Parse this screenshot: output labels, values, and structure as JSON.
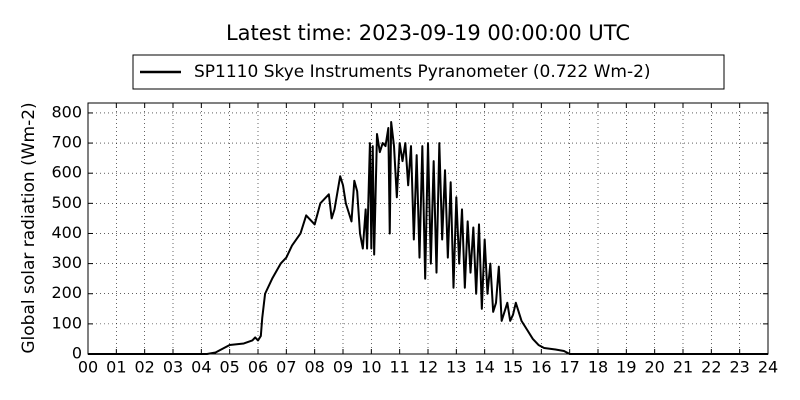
{
  "chart_data": {
    "type": "line",
    "title": "Latest time: 2023-09-19 00:00:00 UTC",
    "y_label": "Global solar radiation (Wm-2)",
    "x": [
      0,
      4.2,
      4.5,
      4.8,
      5.0,
      5.5,
      5.8,
      5.9,
      6.0,
      6.1,
      6.15,
      6.25,
      6.5,
      6.8,
      7.0,
      7.2,
      7.5,
      7.7,
      7.9,
      8.0,
      8.2,
      8.5,
      8.6,
      8.7,
      8.9,
      9.0,
      9.1,
      9.2,
      9.3,
      9.4,
      9.5,
      9.6,
      9.7,
      9.8,
      9.85,
      9.95,
      10.0,
      10.05,
      10.1,
      10.2,
      10.3,
      10.4,
      10.5,
      10.6,
      10.65,
      10.7,
      10.8,
      10.9,
      11.0,
      11.1,
      11.2,
      11.3,
      11.4,
      11.5,
      11.6,
      11.7,
      11.8,
      11.9,
      12.0,
      12.1,
      12.2,
      12.3,
      12.4,
      12.5,
      12.6,
      12.7,
      12.8,
      12.9,
      13.0,
      13.1,
      13.2,
      13.3,
      13.4,
      13.5,
      13.6,
      13.7,
      13.8,
      13.9,
      14.0,
      14.1,
      14.2,
      14.3,
      14.4,
      14.5,
      14.6,
      14.8,
      14.9,
      15.0,
      15.1,
      15.3,
      15.5,
      15.7,
      15.9,
      16.1,
      16.5,
      16.8,
      17.0,
      24
    ],
    "series": [
      {
        "name": "SP1110 Skye Instruments Pyranometer (0.722 Wm-2)",
        "color": "#000000",
        "values": [
          0,
          0,
          5,
          20,
          30,
          35,
          45,
          55,
          45,
          60,
          120,
          200,
          250,
          300,
          320,
          360,
          400,
          460,
          440,
          430,
          500,
          530,
          450,
          480,
          590,
          560,
          500,
          470,
          440,
          575,
          540,
          400,
          350,
          480,
          350,
          700,
          350,
          690,
          330,
          730,
          670,
          700,
          690,
          750,
          400,
          770,
          690,
          520,
          700,
          640,
          700,
          560,
          690,
          380,
          660,
          320,
          690,
          250,
          700,
          300,
          640,
          270,
          700,
          380,
          610,
          320,
          570,
          220,
          520,
          300,
          480,
          220,
          440,
          270,
          420,
          200,
          430,
          150,
          380,
          200,
          300,
          140,
          170,
          290,
          110,
          170,
          110,
          130,
          170,
          110,
          80,
          50,
          30,
          20,
          15,
          10,
          0,
          0
        ]
      }
    ],
    "xlim": [
      0,
      24
    ],
    "xticks": [
      {
        "value": 0,
        "label": "00"
      },
      {
        "value": 1,
        "label": "01"
      },
      {
        "value": 2,
        "label": "02"
      },
      {
        "value": 3,
        "label": "03"
      },
      {
        "value": 4,
        "label": "04"
      },
      {
        "value": 5,
        "label": "05"
      },
      {
        "value": 6,
        "label": "06"
      },
      {
        "value": 7,
        "label": "07"
      },
      {
        "value": 8,
        "label": "08"
      },
      {
        "value": 9,
        "label": "09"
      },
      10,
      11,
      12,
      13,
      14,
      15,
      16,
      17,
      18,
      19,
      20,
      21,
      22,
      23,
      24
    ],
    "ylim": [
      0,
      833
    ],
    "yticks": [
      0,
      100,
      200,
      300,
      400,
      500,
      600,
      700,
      800
    ],
    "grid": true
  }
}
